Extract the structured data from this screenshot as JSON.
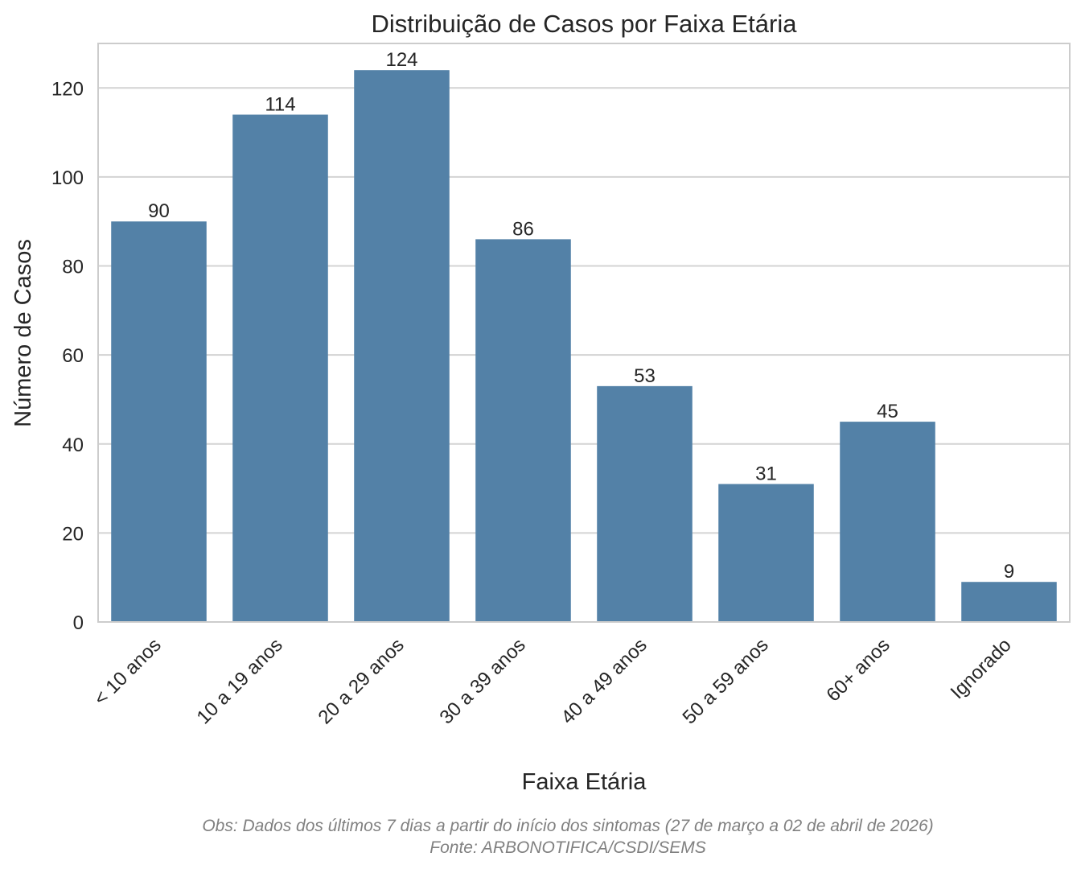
{
  "chart_data": {
    "type": "bar",
    "title": "Distribuição de Casos por Faixa Etária",
    "xlabel": "Faixa Etária",
    "ylabel": "Número de Casos",
    "categories": [
      "< 10 anos",
      "10 a 19 anos",
      "20 a 29 anos",
      "30 a 39 anos",
      "40 a 49 anos",
      "50 a 59 anos",
      "60+ anos",
      "Ignorado"
    ],
    "values": [
      90,
      114,
      124,
      86,
      53,
      31,
      45,
      9
    ],
    "data_labels": [
      "90",
      "114",
      "124",
      "86",
      "53",
      "31",
      "45",
      "9"
    ],
    "ylim": [
      0,
      130
    ],
    "yticks": [
      0,
      20,
      40,
      60,
      80,
      100,
      120
    ],
    "ytick_labels": [
      "0",
      "20",
      "40",
      "60",
      "80",
      "100",
      "120"
    ],
    "grid": true,
    "bar_color": "#5381a7",
    "grid_color": "#d3d3d3"
  },
  "footnote": {
    "line1": "Obs: Dados dos últimos 7 dias a partir do início dos sintomas (27 de março a 02 de abril de 2026)",
    "line2": "Fonte: ARBONOTIFICA/CSDI/SEMS"
  }
}
